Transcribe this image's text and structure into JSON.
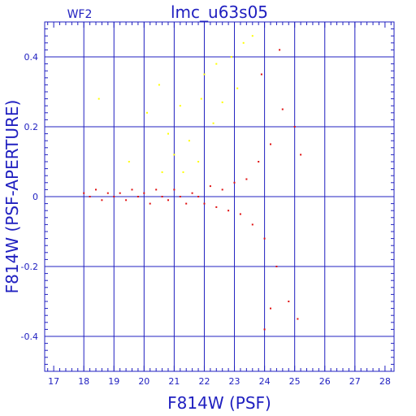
{
  "chart_data": {
    "type": "scatter",
    "title": "lmc_u63s05",
    "corner_label": "WF2",
    "xlabel": "F814W (PSF)",
    "ylabel": "F814W (PSF-APERTURE)",
    "xlim": [
      16.7,
      28.3
    ],
    "ylim": [
      -0.5,
      0.5
    ],
    "x_ticks": [
      17,
      18,
      19,
      20,
      21,
      22,
      23,
      24,
      25,
      26,
      27,
      28
    ],
    "y_ticks": [
      -0.4,
      -0.2,
      0,
      0.2,
      0.4
    ],
    "y_tick_labels": [
      "-0.4",
      "-0.2",
      "0",
      "0.2",
      "0.4"
    ],
    "grid": true,
    "colors": {
      "axes": "#2020c0",
      "grid": "#2020c0",
      "primary": "#e01010",
      "secondary": "#ffff00"
    },
    "series": [
      {
        "color": "#e01010",
        "points": [
          [
            18.0,
            0.01
          ],
          [
            18.2,
            0.0
          ],
          [
            18.4,
            0.02
          ],
          [
            18.6,
            -0.01
          ],
          [
            18.8,
            0.01
          ],
          [
            19.0,
            0.0
          ],
          [
            19.2,
            0.01
          ],
          [
            19.4,
            -0.01
          ],
          [
            19.6,
            0.02
          ],
          [
            19.8,
            0.0
          ],
          [
            20.0,
            0.01
          ],
          [
            20.2,
            -0.02
          ],
          [
            20.4,
            0.02
          ],
          [
            20.6,
            0.0
          ],
          [
            20.8,
            -0.01
          ],
          [
            21.0,
            0.02
          ],
          [
            21.2,
            0.0
          ],
          [
            21.4,
            -0.02
          ],
          [
            21.6,
            0.01
          ],
          [
            21.8,
            0.0
          ],
          [
            22.0,
            -0.02
          ],
          [
            22.2,
            0.03
          ],
          [
            22.4,
            -0.03
          ],
          [
            22.6,
            0.02
          ],
          [
            22.8,
            -0.04
          ],
          [
            23.0,
            0.04
          ],
          [
            23.2,
            -0.05
          ],
          [
            23.4,
            0.05
          ],
          [
            23.6,
            -0.08
          ],
          [
            23.8,
            0.1
          ],
          [
            24.0,
            -0.12
          ],
          [
            24.2,
            0.15
          ],
          [
            24.4,
            -0.2
          ],
          [
            24.6,
            0.25
          ],
          [
            24.8,
            -0.3
          ],
          [
            25.0,
            0.2
          ],
          [
            25.1,
            -0.35
          ],
          [
            24.5,
            0.42
          ],
          [
            24.2,
            -0.32
          ],
          [
            25.2,
            0.12
          ],
          [
            24.0,
            -0.38
          ],
          [
            23.9,
            0.35
          ]
        ]
      },
      {
        "color": "#ffff00",
        "points": [
          [
            18.5,
            0.28
          ],
          [
            19.5,
            0.1
          ],
          [
            20.1,
            0.24
          ],
          [
            20.5,
            0.32
          ],
          [
            20.8,
            0.18
          ],
          [
            21.0,
            0.12
          ],
          [
            21.2,
            0.26
          ],
          [
            21.5,
            0.16
          ],
          [
            21.8,
            0.1
          ],
          [
            22.0,
            0.35
          ],
          [
            22.3,
            0.21
          ],
          [
            22.6,
            0.27
          ],
          [
            22.9,
            0.4
          ],
          [
            23.1,
            0.31
          ],
          [
            23.3,
            0.44
          ],
          [
            23.6,
            0.46
          ],
          [
            22.4,
            0.38
          ],
          [
            21.9,
            0.28
          ],
          [
            21.3,
            0.07
          ],
          [
            20.6,
            0.07
          ]
        ]
      }
    ]
  }
}
